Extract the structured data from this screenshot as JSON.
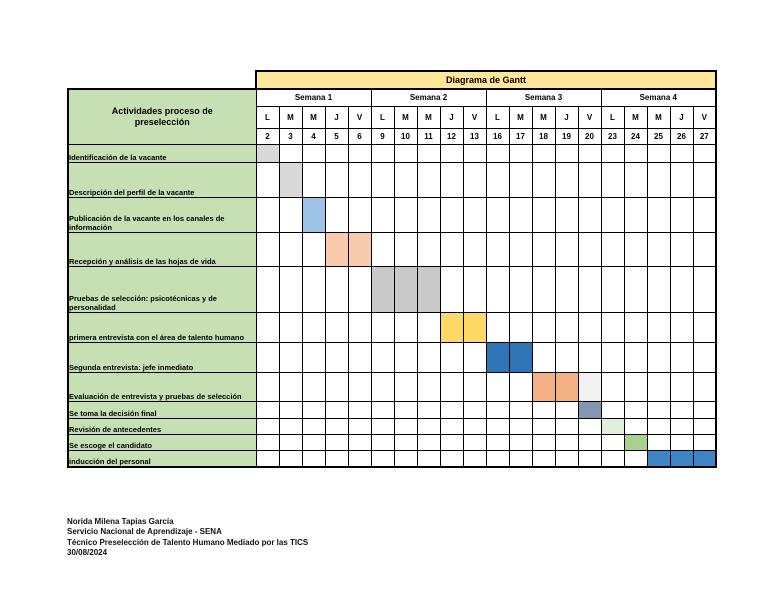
{
  "chart_data": {
    "type": "gantt",
    "title": "Diagrama de Gantt",
    "activities_header": "Actividades proceso de preselección",
    "weeks": [
      {
        "label": "Semana 1",
        "day_letters": [
          "L",
          "M",
          "M",
          "J",
          "V"
        ],
        "dates": [
          2,
          3,
          4,
          5,
          6
        ]
      },
      {
        "label": "Semana 2",
        "day_letters": [
          "L",
          "M",
          "M",
          "J",
          "V"
        ],
        "dates": [
          9,
          10,
          11,
          12,
          13
        ]
      },
      {
        "label": "Semana 3",
        "day_letters": [
          "L",
          "M",
          "M",
          "J",
          "V"
        ],
        "dates": [
          16,
          17,
          18,
          19,
          20
        ]
      },
      {
        "label": "Semana 4",
        "day_letters": [
          "L",
          "M",
          "M",
          "J",
          "V"
        ],
        "dates": [
          23,
          24,
          25,
          26,
          27
        ]
      }
    ],
    "activities": [
      {
        "label": "Identificación de la vacante",
        "bars": [
          {
            "start": 2,
            "end": 2,
            "color": "#D9D9D9"
          }
        ]
      },
      {
        "label": "Descripción del perfil de la vacante",
        "bars": [
          {
            "start": 3,
            "end": 3,
            "color": "#D9D9D9"
          }
        ]
      },
      {
        "label": "Publicación de la vacante en los canales de información",
        "bars": [
          {
            "start": 4,
            "end": 4,
            "color": "#9DC3E6"
          }
        ]
      },
      {
        "label": "Recepción y análisis de las hojas de vida",
        "bars": [
          {
            "start": 5,
            "end": 6,
            "color": "#F8CBAD"
          }
        ]
      },
      {
        "label": "Pruebas de selección: psicotécnicas y de personalidad",
        "bars": [
          {
            "start": 9,
            "end": 11,
            "color": "#C9C9C9"
          }
        ]
      },
      {
        "label": "primera entrevista con el área de talento humano",
        "bars": [
          {
            "start": 12,
            "end": 13,
            "color": "#FFD966"
          }
        ]
      },
      {
        "label": "Segunda entrevista: jefe inmediato",
        "bars": [
          {
            "start": 16,
            "end": 17,
            "color": "#2E75B6"
          }
        ]
      },
      {
        "label": "Evaluación de entrevista y pruebas de selección",
        "bars": [
          {
            "start": 18,
            "end": 19,
            "color": "#F4B183"
          },
          {
            "start": 20,
            "end": 20,
            "color": "#F2F2F2"
          }
        ]
      },
      {
        "label": "Se toma la decisión final",
        "bars": [
          {
            "start": 20,
            "end": 20,
            "color": "#8497B0"
          }
        ]
      },
      {
        "label": "Revisión de antecedentes",
        "bars": [
          {
            "start": 23,
            "end": 23,
            "color": "#E2EFDA"
          }
        ]
      },
      {
        "label": "Se escoge el candidato",
        "bars": [
          {
            "start": 24,
            "end": 24,
            "color": "#A9D18E"
          }
        ]
      },
      {
        "label": "inducción del personal",
        "bars": [
          {
            "start": 25,
            "end": 27,
            "color": "#3D85C6"
          }
        ]
      }
    ],
    "colors": {
      "title_bg": "#FFE699",
      "activities_bg": "#C6E0B4",
      "grid_line": "#000000"
    }
  },
  "footer": {
    "lines": [
      "Norida Milena Tapias García",
      "Servicio Nacional de Aprendizaje - SENA",
      "Técnico Preselección de Talento Humano Mediado por las TICS",
      "30/08/2024"
    ]
  }
}
